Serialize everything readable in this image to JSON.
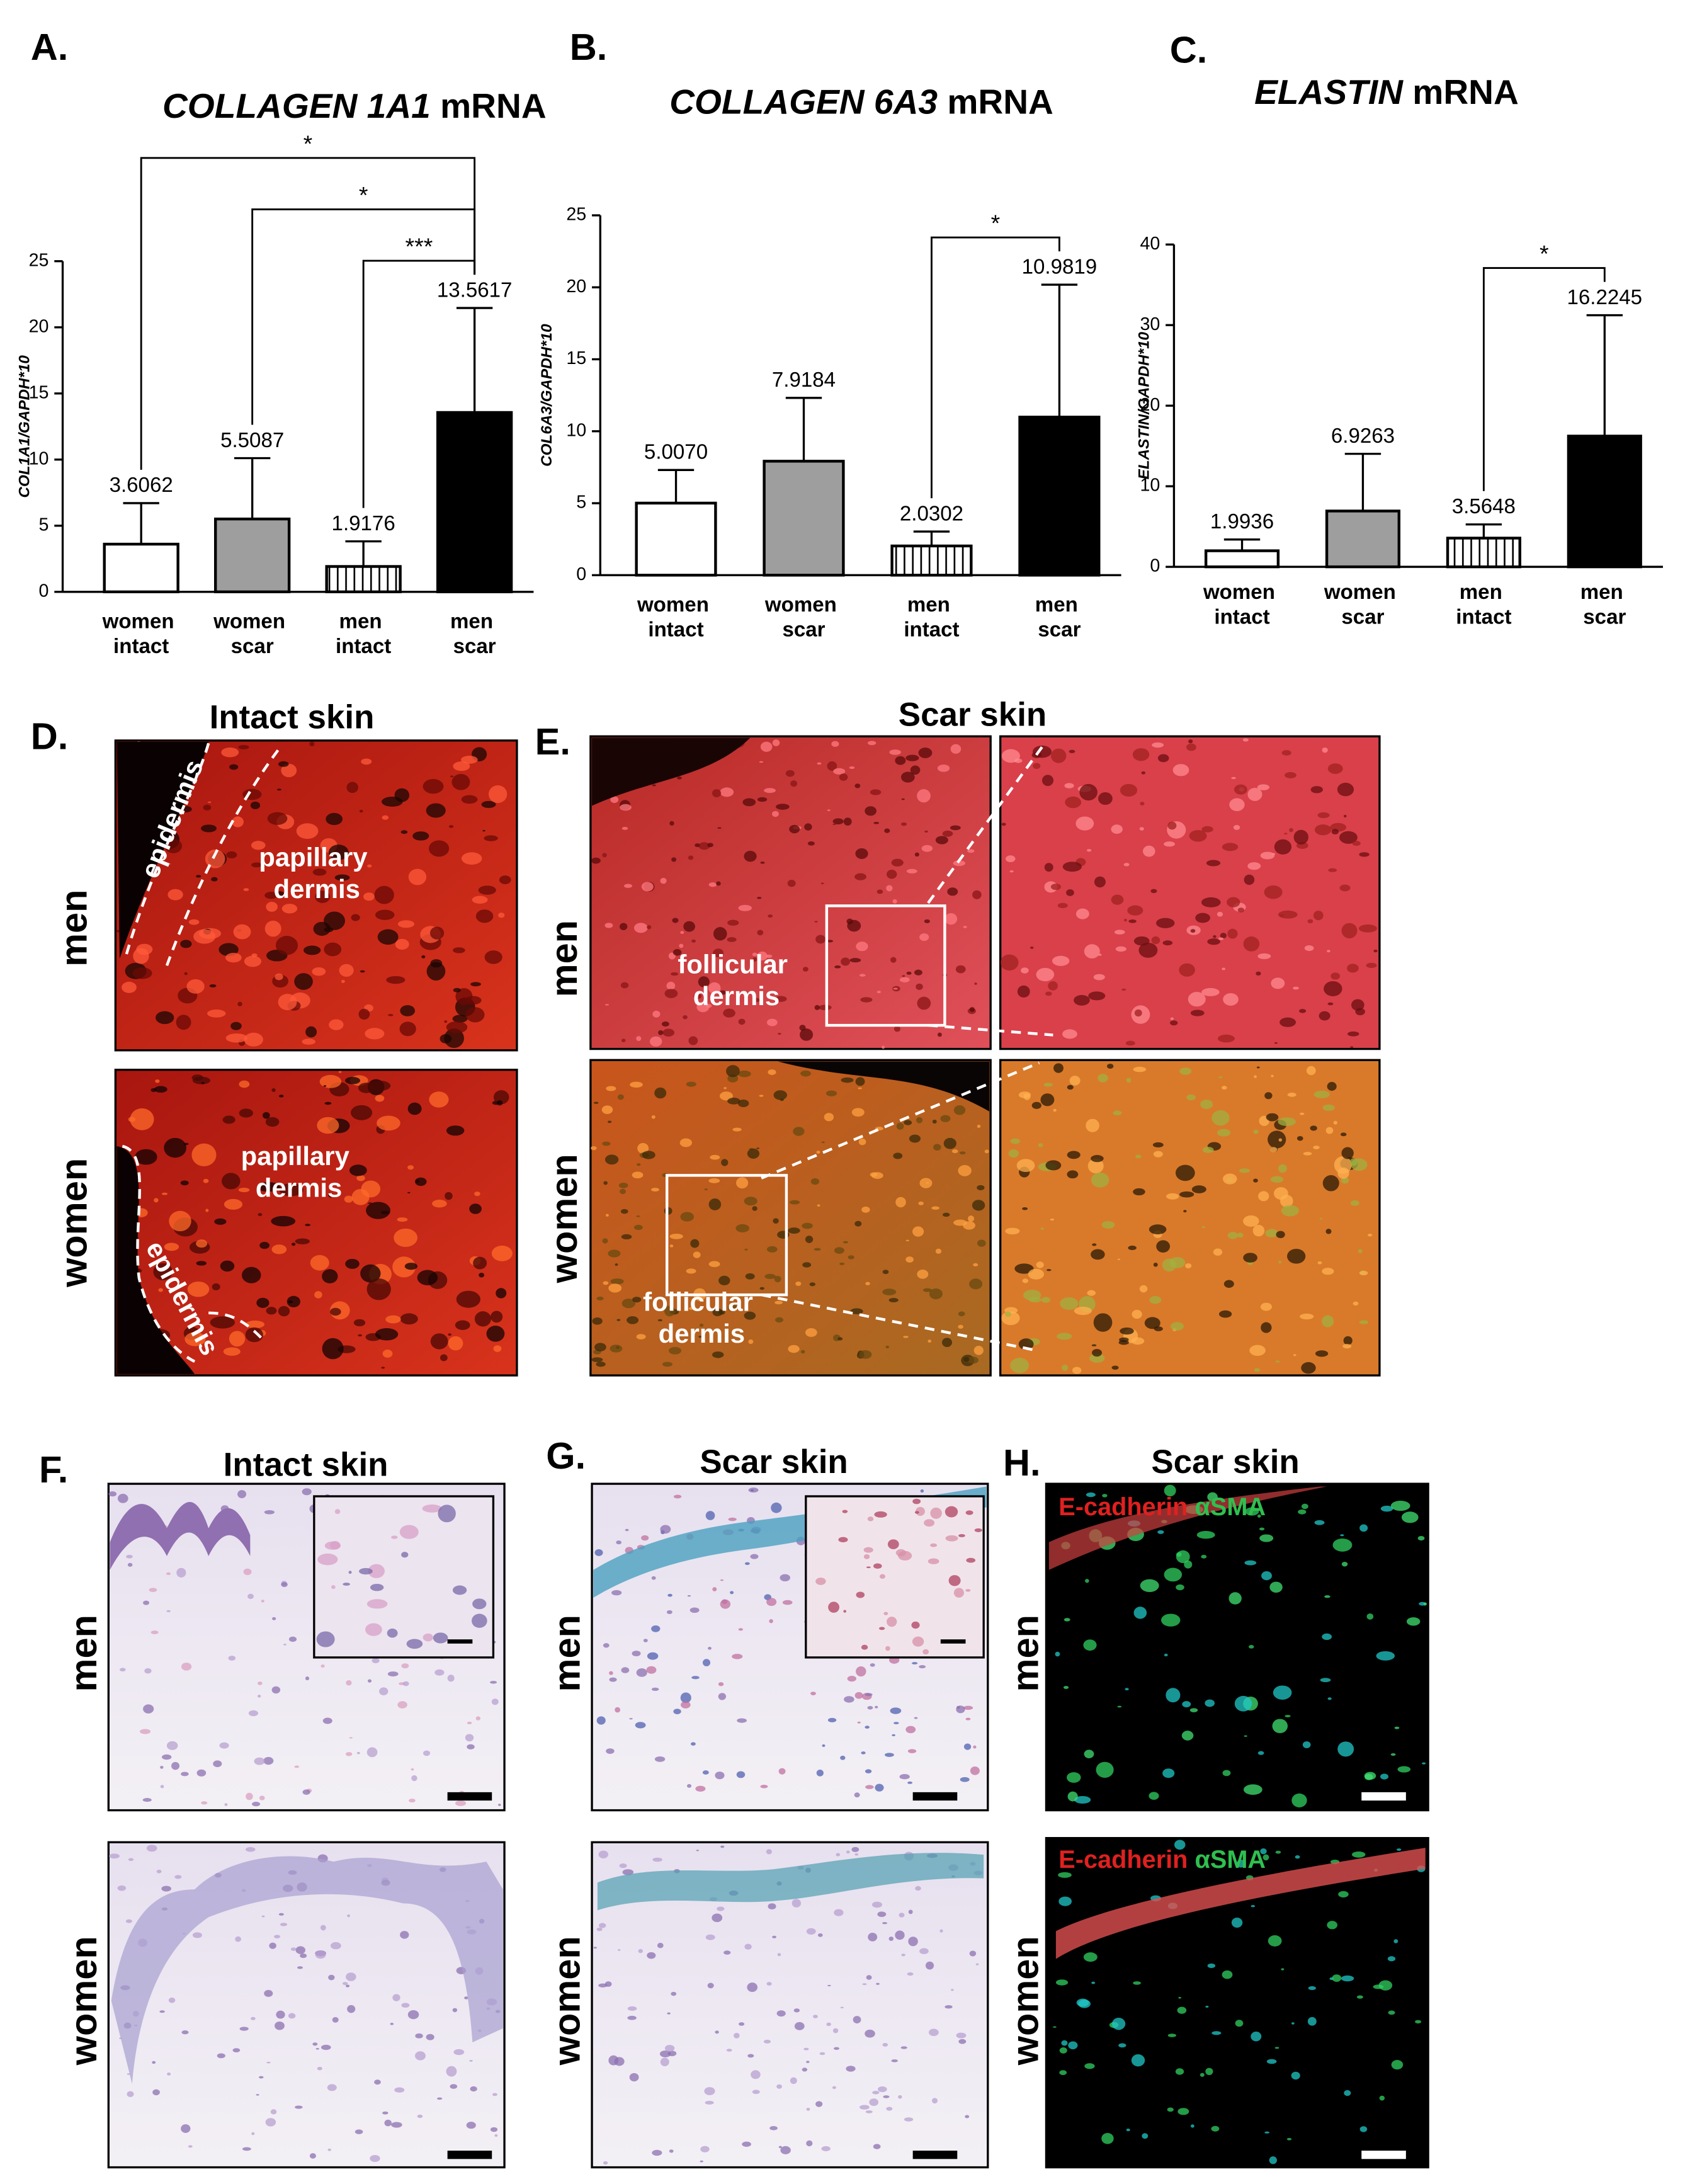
{
  "chart_data": [
    {
      "type": "bar",
      "title": "COLLAGEN 1A1 mRNA",
      "y_label": "COL1A1/GAPDH*10",
      "categories": [
        "women intact",
        "women scar",
        "men intact",
        "men scar"
      ],
      "values": [
        3.6062,
        5.5087,
        1.9176,
        13.5617
      ],
      "value_labels": [
        "3.6062",
        "5.5087",
        "1.9176",
        "13.5617"
      ],
      "errors": [
        3.1,
        4.6,
        1.9,
        7.9
      ],
      "colors": [
        "#ffffff",
        "#9e9e9e",
        "#ffffff",
        "#000000"
      ],
      "hatch": [
        false,
        false,
        true,
        false
      ],
      "ylim": [
        0,
        25
      ],
      "yticks": [
        0,
        5,
        10,
        15,
        20,
        25
      ],
      "significance": [
        {
          "from": 0,
          "to": 3,
          "label": "*"
        },
        {
          "from": 1,
          "to": 3,
          "label": "*"
        },
        {
          "from": 2,
          "to": 3,
          "label": "***"
        }
      ]
    },
    {
      "type": "bar",
      "title": "COLLAGEN 6A3 mRNA",
      "y_label": "COL6A3/GAPDH*10",
      "categories": [
        "women intact",
        "women scar",
        "men intact",
        "men scar"
      ],
      "values": [
        5.007,
        7.9184,
        2.0302,
        10.9819
      ],
      "value_labels": [
        "5.0070",
        "7.9184",
        "2.0302",
        "10.9819"
      ],
      "errors": [
        2.3,
        4.4,
        1.0,
        9.2
      ],
      "colors": [
        "#ffffff",
        "#9e9e9e",
        "#ffffff",
        "#000000"
      ],
      "hatch": [
        false,
        false,
        true,
        false
      ],
      "ylim": [
        0,
        25
      ],
      "yticks": [
        0,
        5,
        10,
        15,
        20,
        25
      ],
      "significance": [
        {
          "from": 2,
          "to": 3,
          "label": "*"
        }
      ]
    },
    {
      "type": "bar",
      "title": "ELASTIN mRNA",
      "y_label": "ELASTIN/GAPDH*10",
      "categories": [
        "women intact",
        "women scar",
        "men intact",
        "men scar"
      ],
      "values": [
        1.9936,
        6.9263,
        3.5648,
        16.2245
      ],
      "value_labels": [
        "1.9936",
        "6.9263",
        "3.5648",
        "16.2245"
      ],
      "errors": [
        1.4,
        7.1,
        1.7,
        15.0
      ],
      "colors": [
        "#ffffff",
        "#9e9e9e",
        "#ffffff",
        "#000000"
      ],
      "hatch": [
        false,
        false,
        true,
        false
      ],
      "ylim": [
        0,
        40
      ],
      "yticks": [
        0,
        10,
        20,
        30,
        40
      ],
      "significance": [
        {
          "from": 2,
          "to": 3,
          "label": "*"
        }
      ]
    }
  ],
  "panel_labels": [
    "A.",
    "B.",
    "C.",
    "D.",
    "E.",
    "F.",
    "G.",
    "H."
  ],
  "images": {
    "D": {
      "title": "Intact skin",
      "rows": [
        "men",
        "women"
      ],
      "layers": [
        "epidermis",
        "papillary dermis"
      ]
    },
    "E": {
      "title": "Scar skin",
      "rows": [
        "men",
        "women"
      ],
      "layer": "follicular dermis"
    },
    "F": {
      "title": "Intact skin",
      "rows": [
        "men",
        "women"
      ]
    },
    "G": {
      "title": "Scar skin",
      "rows": [
        "men",
        "women"
      ]
    },
    "H": {
      "title": "Scar skin",
      "rows": [
        "men",
        "women"
      ],
      "stains": [
        "E-cadherin",
        "αSMA"
      ]
    }
  }
}
